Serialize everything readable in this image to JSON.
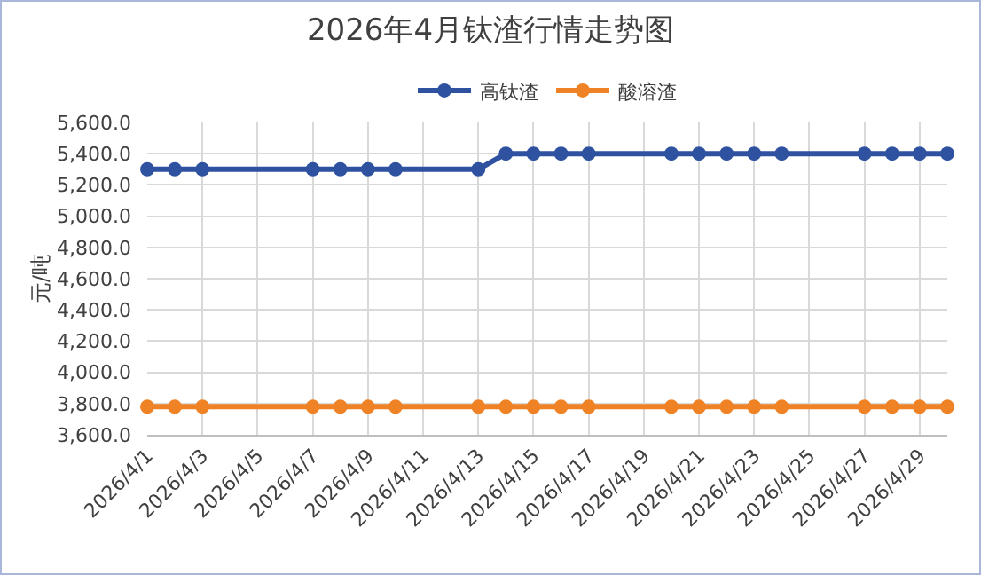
{
  "chart_data": {
    "type": "line",
    "title": "2026年4月钛渣行情走势图",
    "ylabel": "元/吨",
    "x": [
      "2026-04-01",
      "2026-04-02",
      "2026-04-03",
      "2026-04-07",
      "2026-04-08",
      "2026-04-09",
      "2026-04-10",
      "2026-04-13",
      "2026-04-14",
      "2026-04-15",
      "2026-04-16",
      "2026-04-17",
      "2026-04-20",
      "2026-04-21",
      "2026-04-22",
      "2026-04-23",
      "2026-04-24",
      "2026-04-27",
      "2026-04-28",
      "2026-04-29",
      "2026-04-30"
    ],
    "series": [
      {
        "name": "高钛渣",
        "color": "#2f52a0",
        "values": [
          5300,
          5300,
          5300,
          5300,
          5300,
          5300,
          5300,
          5300,
          5400,
          5400,
          5400,
          5400,
          5400,
          5400,
          5400,
          5400,
          5400,
          5400,
          5400,
          5400,
          5400
        ]
      },
      {
        "name": "酸溶渣",
        "color": "#f08226",
        "values": [
          3780,
          3780,
          3780,
          3780,
          3780,
          3780,
          3780,
          3780,
          3780,
          3780,
          3780,
          3780,
          3780,
          3780,
          3780,
          3780,
          3780,
          3780,
          3780,
          3780,
          3780
        ]
      }
    ],
    "xlim": [
      "2026-04-01",
      "2026-04-30"
    ],
    "xticks": [
      {
        "value": "2026-04-01",
        "label": "2026/4/1"
      },
      {
        "value": "2026-04-03",
        "label": "2026/4/3"
      },
      {
        "value": "2026-04-05",
        "label": "2026/4/5"
      },
      {
        "value": "2026-04-07",
        "label": "2026/4/7"
      },
      {
        "value": "2026-04-09",
        "label": "2026/4/9"
      },
      {
        "value": "2026-04-11",
        "label": "2026/4/11"
      },
      {
        "value": "2026-04-13",
        "label": "2026/4/13"
      },
      {
        "value": "2026-04-15",
        "label": "2026/4/15"
      },
      {
        "value": "2026-04-17",
        "label": "2026/4/17"
      },
      {
        "value": "2026-04-19",
        "label": "2026/4/19"
      },
      {
        "value": "2026-04-21",
        "label": "2026/4/21"
      },
      {
        "value": "2026-04-23",
        "label": "2026/4/23"
      },
      {
        "value": "2026-04-25",
        "label": "2026/4/25"
      },
      {
        "value": "2026-04-27",
        "label": "2026/4/27"
      },
      {
        "value": "2026-04-29",
        "label": "2026/4/29"
      }
    ],
    "ylim": [
      3600,
      5600
    ],
    "yticks": [
      {
        "value": 3600,
        "label": "3,600.0"
      },
      {
        "value": 3800,
        "label": "3,800.0"
      },
      {
        "value": 4000,
        "label": "4,000.0"
      },
      {
        "value": 4200,
        "label": "4,200.0"
      },
      {
        "value": 4400,
        "label": "4,400.0"
      },
      {
        "value": 4600,
        "label": "4,600.0"
      },
      {
        "value": 4800,
        "label": "4,800.0"
      },
      {
        "value": 5000,
        "label": "5,000.0"
      },
      {
        "value": 5200,
        "label": "5,200.0"
      },
      {
        "value": 5400,
        "label": "5,400.0"
      },
      {
        "value": 5600,
        "label": "5,600.0"
      }
    ],
    "grid": true,
    "legend": "top",
    "marker": "circle",
    "line_style": "solid"
  }
}
